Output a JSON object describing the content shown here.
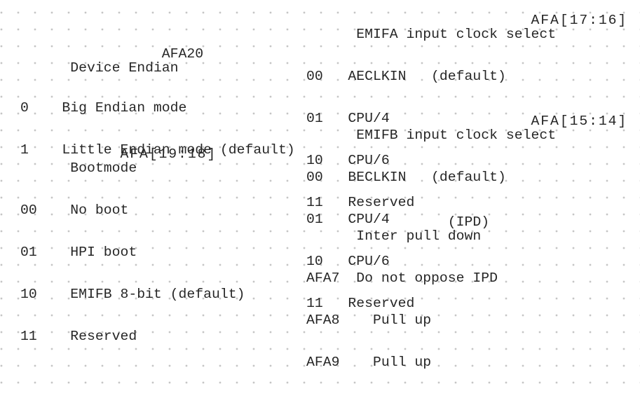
{
  "colors": {
    "background": "#ffffff",
    "dot_grid": "#c2c2c2",
    "text": "#262626"
  },
  "sections": {
    "device_endian": {
      "title": "Device Endian",
      "register": "AFA20",
      "lines": [
        "0    Big Endian mode",
        "1    Little Endian mode (default)"
      ]
    },
    "bootmode": {
      "title": "Bootmode",
      "register": "AFA[19:18]",
      "lines": [
        "00    No boot",
        "01    HPI boot",
        "10    EMIFB 8-bit (default)",
        "11    Reserved"
      ]
    },
    "emifa_clock": {
      "title": "EMIFA input clock select",
      "register": "AFA[17:16]",
      "lines": [
        "00   AECLKIN   (default)",
        "01   CPU/4",
        "10   CPU/6",
        "11   Reserved"
      ]
    },
    "emifb_clock": {
      "title": "EMIFB input clock select",
      "register": "AFA[15:14]",
      "lines": [
        "00   BECLKIN   (default)",
        "01   CPU/4",
        "10   CPU/6",
        "11   Reserved"
      ]
    },
    "inter_pull_down": {
      "title": "Inter pull down",
      "register": "(IPD)",
      "lines": [
        "AFA7  Do not oppose IPD",
        "AFA8    Pull up",
        "AFA9    Pull up"
      ]
    }
  }
}
